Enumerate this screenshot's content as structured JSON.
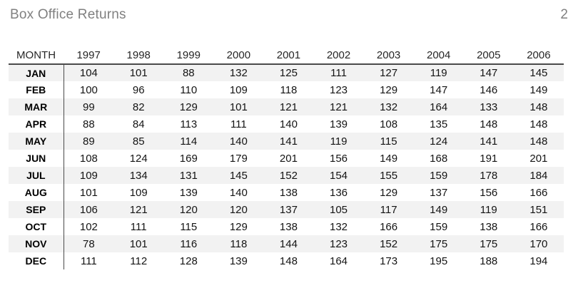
{
  "page": {
    "title": "Box Office Returns",
    "page_number": "2"
  },
  "table": {
    "month_header": "MONTH",
    "years": [
      "1997",
      "1998",
      "1999",
      "2000",
      "2001",
      "2002",
      "2003",
      "2004",
      "2005",
      "2006"
    ],
    "rows": [
      {
        "month": "JAN",
        "values": [
          104,
          101,
          88,
          132,
          125,
          111,
          127,
          119,
          147,
          145
        ]
      },
      {
        "month": "FEB",
        "values": [
          100,
          96,
          110,
          109,
          118,
          123,
          129,
          147,
          146,
          149
        ]
      },
      {
        "month": "MAR",
        "values": [
          99,
          82,
          129,
          101,
          121,
          121,
          132,
          164,
          133,
          148
        ]
      },
      {
        "month": "APR",
        "values": [
          88,
          84,
          113,
          111,
          140,
          139,
          108,
          135,
          148,
          148
        ]
      },
      {
        "month": "MAY",
        "values": [
          89,
          85,
          114,
          140,
          141,
          119,
          115,
          124,
          141,
          148
        ]
      },
      {
        "month": "JUN",
        "values": [
          108,
          124,
          169,
          179,
          201,
          156,
          149,
          168,
          191,
          201
        ]
      },
      {
        "month": "JUL",
        "values": [
          109,
          134,
          131,
          145,
          152,
          154,
          155,
          159,
          178,
          184
        ]
      },
      {
        "month": "AUG",
        "values": [
          101,
          109,
          139,
          140,
          138,
          136,
          129,
          137,
          156,
          166
        ]
      },
      {
        "month": "SEP",
        "values": [
          106,
          121,
          120,
          120,
          137,
          105,
          117,
          149,
          119,
          151
        ]
      },
      {
        "month": "OCT",
        "values": [
          102,
          111,
          115,
          129,
          138,
          132,
          166,
          159,
          138,
          166
        ]
      },
      {
        "month": "NOV",
        "values": [
          78,
          101,
          116,
          118,
          144,
          123,
          152,
          175,
          175,
          170
        ]
      },
      {
        "month": "DEC",
        "values": [
          111,
          112,
          128,
          139,
          148,
          164,
          173,
          195,
          188,
          194
        ]
      }
    ],
    "colors": {
      "title_text": "#808080",
      "stripe_row": "#f2f2f2",
      "rule_lines": "#4a4a4a",
      "body_text": "#141414"
    }
  }
}
